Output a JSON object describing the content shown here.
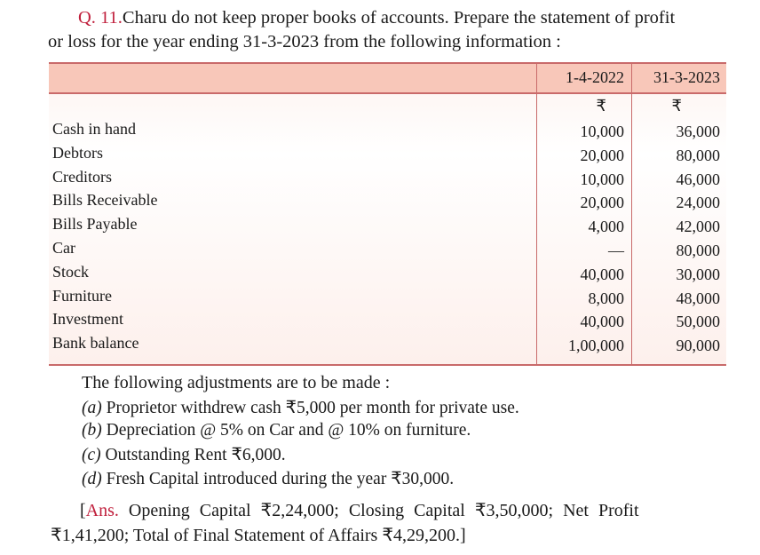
{
  "question": {
    "number": "Q. 11.",
    "line1": "Charu do not keep proper books of accounts. Prepare the statement of profit",
    "line2": "or loss for the year ending 31-3-2023 from the following information :"
  },
  "table": {
    "columns": [
      "1-4-2022",
      "31-3-2023"
    ],
    "currency": [
      "₹",
      "₹"
    ],
    "rows": [
      {
        "label": "Cash in hand",
        "v1": "10,000",
        "v2": "36,000"
      },
      {
        "label": "Debtors",
        "v1": "20,000",
        "v2": "80,000"
      },
      {
        "label": "Creditors",
        "v1": "10,000",
        "v2": "46,000"
      },
      {
        "label": "Bills Receivable",
        "v1": "20,000",
        "v2": "24,000"
      },
      {
        "label": "Bills Payable",
        "v1": "4,000",
        "v2": "42,000"
      },
      {
        "label": "Car",
        "v1": "—",
        "v2": "80,000"
      },
      {
        "label": "Stock",
        "v1": "40,000",
        "v2": "30,000"
      },
      {
        "label": "Furniture",
        "v1": "8,000",
        "v2": "48,000"
      },
      {
        "label": "Investment",
        "v1": "40,000",
        "v2": "50,000"
      },
      {
        "label": "Bank balance",
        "v1": "1,00,000",
        "v2": "90,000"
      }
    ]
  },
  "adjustments": {
    "intro": "The following adjustments are to be made :",
    "items": [
      {
        "mark": "(a)",
        "text": " Proprietor withdrew cash ₹5,000 per month for private use."
      },
      {
        "mark": "(b)",
        "text": " Depreciation @ 5% on Car and @ 10% on furniture."
      },
      {
        "mark": "(c)",
        "text": " Outstanding Rent ₹6,000."
      },
      {
        "mark": "(d)",
        "text": " Fresh Capital introduced during the year ₹30,000."
      }
    ]
  },
  "answer": {
    "open": "[",
    "label": "Ans.",
    "line1": "Opening Capital ₹2,24,000; Closing Capital ₹3,50,000; Net Profit",
    "line2": "₹1,41,200; Total of Final Statement of Affairs ₹4,29,200.]"
  },
  "colors": {
    "accent_red": "#c01f3c",
    "header_band": "#f8c7b9",
    "rule": "#c96a6a"
  }
}
